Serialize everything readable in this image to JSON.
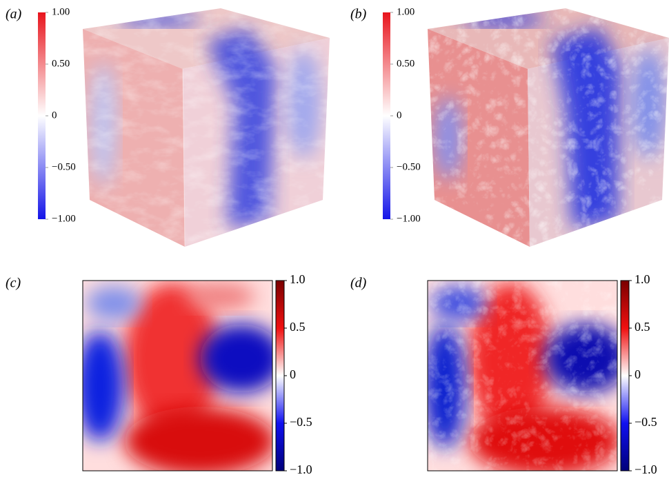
{
  "panels": [
    {
      "label": "(a)",
      "colorbar": {
        "lim": [
          -1,
          1
        ],
        "ticks": [
          {
            "value": 1,
            "label": "1.00"
          },
          {
            "value": 0.5,
            "label": "0.50"
          },
          0,
          {
            "value": -0.5,
            "label": "−0.50"
          },
          {
            "value": -1,
            "label": "−1.00"
          }
        ]
      }
    },
    {
      "label": "(b)",
      "colorbar": {
        "lim": [
          -1,
          1
        ],
        "ticks": [
          {
            "value": 1,
            "label": "1.00"
          },
          {
            "value": 0.5,
            "label": "0.50"
          },
          0,
          {
            "value": -0.5,
            "label": "−0.50"
          },
          {
            "value": -1,
            "label": "−1.00"
          }
        ]
      }
    },
    {
      "label": "(c)",
      "colorbar": {
        "lim": [
          -1,
          1
        ],
        "ticks": [
          {
            "value": 1,
            "label": "1.0"
          },
          0.5,
          0,
          {
            "value": -0.5,
            "label": "−0.5"
          },
          {
            "value": -1,
            "label": "−1.0"
          }
        ]
      }
    },
    {
      "label": "(d)",
      "colorbar": {
        "lim": [
          -1,
          1
        ],
        "ticks": [
          {
            "value": 1,
            "label": "1.0"
          },
          0.5,
          0,
          {
            "value": -0.5,
            "label": "−0.5"
          },
          {
            "value": -1,
            "label": "−1.0"
          }
        ]
      }
    }
  ]
}
